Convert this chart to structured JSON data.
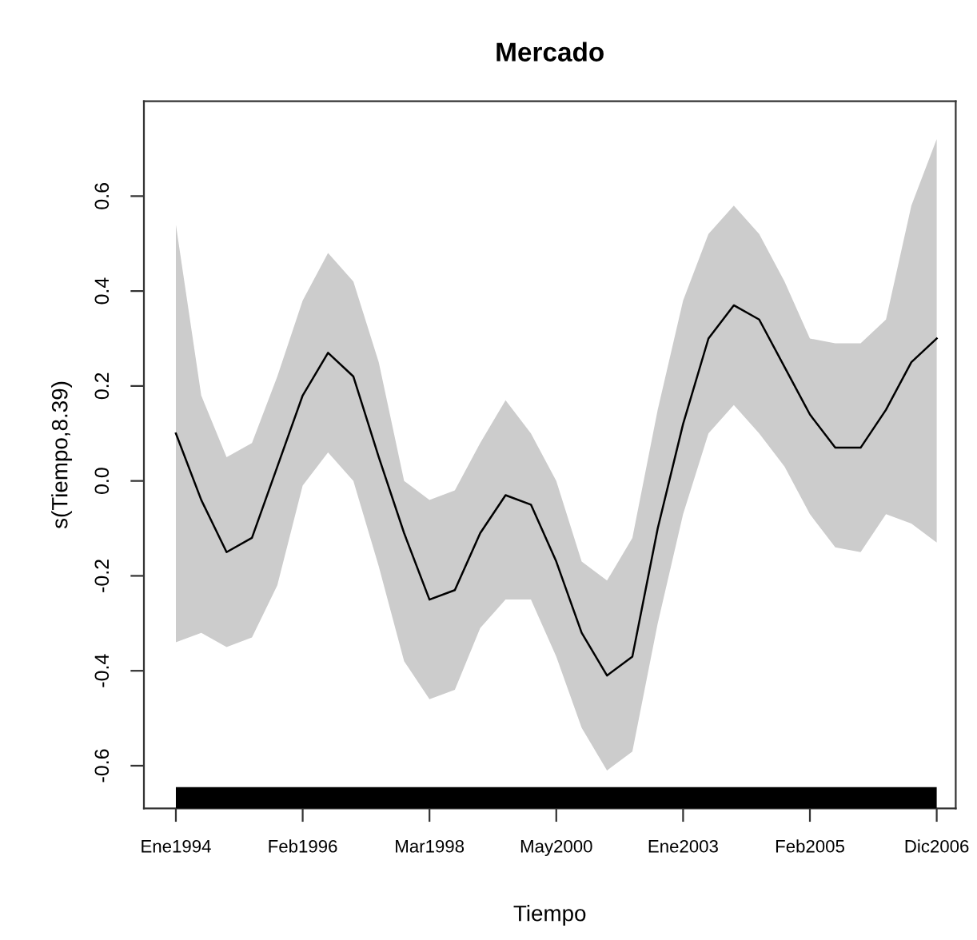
{
  "chart_data": {
    "type": "line",
    "title": "Mercado",
    "xlabel": "Tiempo",
    "ylabel": "s(Tiempo,8.39)",
    "ylim": [
      -0.69,
      0.8
    ],
    "yticks": [
      -0.6,
      -0.4,
      -0.2,
      {
        "value": 0,
        "label": "0.0"
      },
      0.2,
      0.4,
      0.6
    ],
    "grid": false,
    "legend": false,
    "marker": "none",
    "line_style": "solid",
    "categories": [
      "Ene1994",
      null,
      null,
      null,
      null,
      "Feb1996",
      null,
      null,
      null,
      null,
      "Mar1998",
      null,
      null,
      null,
      null,
      "May2000",
      null,
      null,
      null,
      null,
      "Ene2003",
      null,
      null,
      null,
      null,
      "Feb2005",
      null,
      null,
      null,
      null,
      "Dic2006"
    ],
    "series": [
      {
        "color": "#000000",
        "values": [
          0.1,
          -0.04,
          -0.15,
          -0.12,
          0.03,
          0.18,
          0.27,
          0.22,
          0.05,
          -0.11,
          -0.25,
          -0.23,
          -0.11,
          -0.03,
          -0.05,
          -0.17,
          -0.32,
          -0.41,
          -0.37,
          -0.1,
          0.12,
          0.3,
          0.37,
          0.34,
          0.24,
          0.14,
          0.07,
          0.07,
          0.15,
          0.25,
          0.3
        ],
        "upper": [
          0.54,
          0.18,
          0.05,
          0.08,
          0.22,
          0.38,
          0.48,
          0.42,
          0.25,
          0.0,
          -0.04,
          -0.02,
          0.08,
          0.17,
          0.1,
          0.0,
          -0.17,
          -0.21,
          -0.12,
          0.15,
          0.38,
          0.52,
          0.58,
          0.52,
          0.42,
          0.3,
          0.29,
          0.29,
          0.34,
          0.58,
          0.72
        ],
        "lower": [
          -0.34,
          -0.32,
          -0.35,
          -0.33,
          -0.22,
          -0.01,
          0.06,
          0.0,
          -0.18,
          -0.38,
          -0.46,
          -0.44,
          -0.31,
          -0.25,
          -0.25,
          -0.37,
          -0.52,
          -0.61,
          -0.57,
          -0.3,
          -0.07,
          0.1,
          0.16,
          0.1,
          0.03,
          -0.07,
          -0.14,
          -0.15,
          -0.07,
          -0.09,
          -0.13
        ]
      }
    ]
  }
}
